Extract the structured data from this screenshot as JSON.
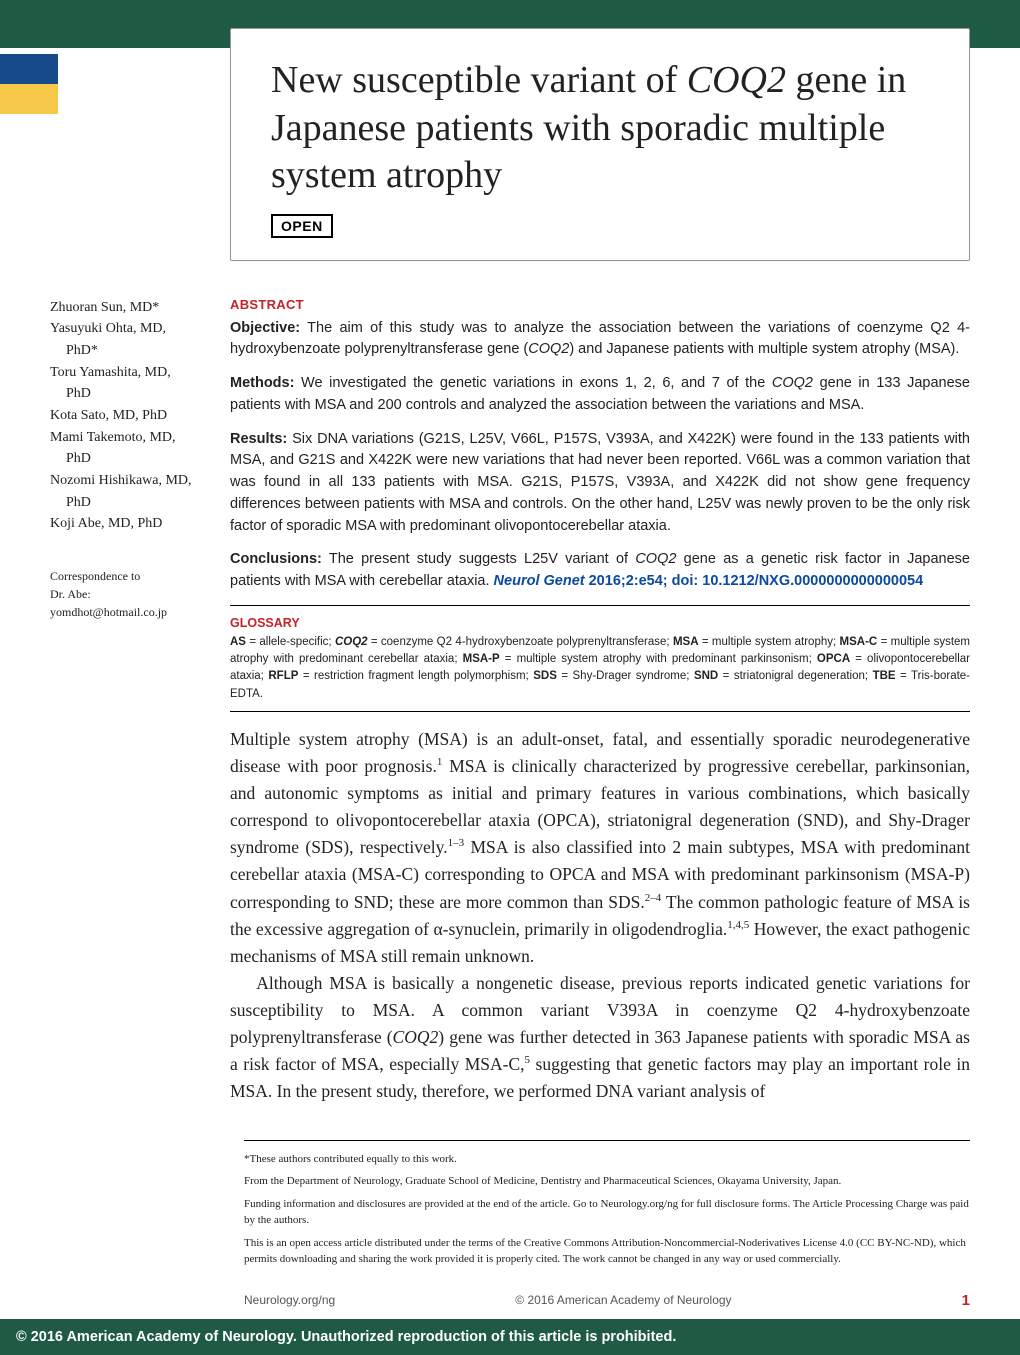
{
  "banner": {
    "bg": "#1f5a45",
    "tab_colors": [
      "#174a8a",
      "#f5c84a"
    ]
  },
  "title": {
    "text_pre": "New susceptible variant of ",
    "gene": "COQ2",
    "text_post": " gene in Japanese patients with sporadic multiple system atrophy"
  },
  "open_badge": "OPEN",
  "authors": [
    {
      "name": "Zhuoran Sun, MD*",
      "indent": false
    },
    {
      "name": "Yasuyuki Ohta, MD,",
      "indent": false
    },
    {
      "name": "PhD*",
      "indent": true
    },
    {
      "name": "Toru Yamashita, MD,",
      "indent": false
    },
    {
      "name": "PhD",
      "indent": true
    },
    {
      "name": "Kota Sato, MD, PhD",
      "indent": false
    },
    {
      "name": "Mami Takemoto, MD,",
      "indent": false
    },
    {
      "name": "PhD",
      "indent": true
    },
    {
      "name": "Nozomi Hishikawa, MD,",
      "indent": false
    },
    {
      "name": "PhD",
      "indent": true
    },
    {
      "name": "Koji Abe, MD, PhD",
      "indent": false
    }
  ],
  "correspondence": {
    "line1": "Correspondence to",
    "line2": "Dr. Abe:",
    "email": "yomdhot@hotmail.co.jp"
  },
  "abstract": {
    "heading": "ABSTRACT",
    "objective_label": "Objective:",
    "objective_text": " The aim of this study was to analyze the association between the variations of coenzyme Q2 4-hydroxybenzoate polyprenyltransferase gene (COQ2) and Japanese patients with multiple system atrophy (MSA).",
    "methods_label": "Methods:",
    "methods_text": " We investigated the genetic variations in exons 1, 2, 6, and 7 of the COQ2 gene in 133 Japanese patients with MSA and 200 controls and analyzed the association between the variations and MSA.",
    "results_label": "Results:",
    "results_text": " Six DNA variations (G21S, L25V, V66L, P157S, V393A, and X422K) were found in the 133 patients with MSA, and G21S and X422K were new variations that had never been reported. V66L was a common variation that was found in all 133 patients with MSA. G21S, P157S, V393A, and X422K did not show gene frequency differences between patients with MSA and controls. On the other hand, L25V was newly proven to be the only risk factor of sporadic MSA with predominant olivopontocerebellar ataxia.",
    "conclusions_label": "Conclusions:",
    "conclusions_text": " The present study suggests L25V variant of COQ2 gene as a genetic risk factor in Japanese patients with MSA with cerebellar ataxia. ",
    "citation_journal": "Neurol Genet",
    "citation_text": " 2016;2:e54; doi: 10.1212/NXG.0000000000000054"
  },
  "glossary": {
    "heading": "GLOSSARY",
    "body_html": "<b>AS</b> = allele-specific; <span class='bi'>COQ2</span> = coenzyme Q2 4-hydroxybenzoate polyprenyltransferase; <b>MSA</b> = multiple system atrophy; <b>MSA-C</b> = multiple system atrophy with predominant cerebellar ataxia; <b>MSA-P</b> = multiple system atrophy with predominant parkinsonism; <b>OPCA</b> = olivopontocerebellar ataxia; <b>RFLP</b> = restriction fragment length polymorphism; <b>SDS</b> = Shy-Drager syndrome; <b>SND</b> = striatonigral degeneration; <b>TBE</b> = Tris-borate-EDTA."
  },
  "body": {
    "para1": "Multiple system atrophy (MSA) is an adult-onset, fatal, and essentially sporadic neurodegenerative disease with poor prognosis.<span class='sup'>1</span> MSA is clinically characterized by progressive cerebellar, parkinsonian, and autonomic symptoms as initial and primary features in various combinations, which basically correspond to olivopontocerebellar ataxia (OPCA), striatonigral degeneration (SND), and Shy-Drager syndrome (SDS), respectively.<span class='sup'>1–3</span> MSA is also classified into 2 main subtypes, MSA with predominant cerebellar ataxia (MSA-C) corresponding to OPCA and MSA with predominant parkinsonism (MSA-P) corresponding to SND; these are more common than SDS.<span class='sup'>2–4</span> The common pathologic feature of MSA is the excessive aggregation of α-synuclein, primarily in oligodendroglia.<span class='sup'>1,4,5</span> However, the exact pathogenic mechanisms of MSA still remain unknown.",
    "para2": "Although MSA is basically a nongenetic disease, previous reports indicated genetic variations for susceptibility to MSA. A common variant V393A in coenzyme Q2 4-hydroxybenzoate polyprenyltransferase (<span class='italic'>COQ2</span>) gene was further detected in 363 Japanese patients with sporadic MSA as a risk factor of MSA, especially MSA-C,<span class='sup'>5</span> suggesting that genetic factors may play an important role in MSA. In the present study, therefore, we performed DNA variant analysis of"
  },
  "footnotes": {
    "f1": "*These authors contributed equally to this work.",
    "f2": "From the Department of Neurology, Graduate School of Medicine, Dentistry and Pharmaceutical Sciences, Okayama University, Japan.",
    "f3": "Funding information and disclosures are provided at the end of the article. Go to Neurology.org/ng for full disclosure forms. The Article Processing Charge was paid by the authors.",
    "f4": "This is an open access article distributed under the terms of the Creative Commons Attribution-Noncommercial-Noderivatives License 4.0 (CC BY-NC-ND), which permits downloading and sharing the work provided it is properly cited. The work cannot be changed in any way or used commercially."
  },
  "footer": {
    "left": "Neurology.org/ng",
    "center": "© 2016 American Academy of Neurology",
    "pagenum": "1"
  },
  "copyright_bar": "© 2016 American Academy of Neurology. Unauthorized reproduction of this article is prohibited."
}
